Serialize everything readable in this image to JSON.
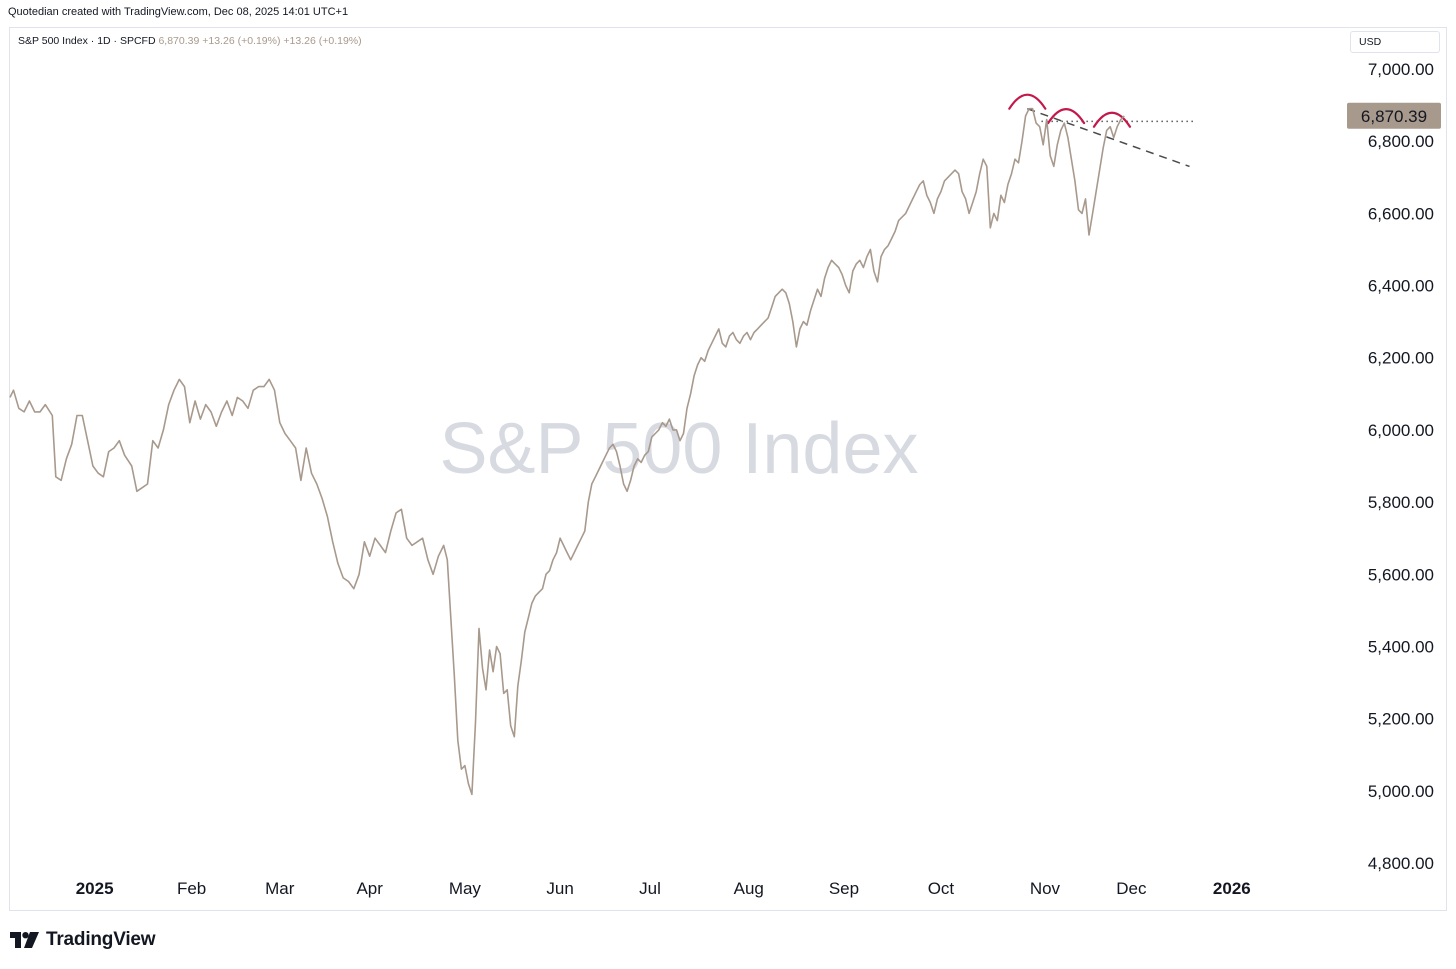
{
  "header": {
    "credit": "Quotedian created with TradingView.com, Dec 08, 2025 14:01 UTC+1"
  },
  "legend": {
    "symbol": "S&P 500 Index · 1D · SPCFD",
    "last": "6,870.39",
    "change": "+13.26 (+0.19%)",
    "change2": "+13.26 (+0.19%)"
  },
  "currency": "USD",
  "watermark": "S&P 500 Index",
  "brand": {
    "name": "TradingView",
    "icon": "tradingview-logo-icon"
  },
  "colors": {
    "line": "#a8998d",
    "accent": "#c2184b",
    "price_tag": "#a8998d",
    "trend": "#4a4a4a"
  },
  "chart_data": {
    "type": "line",
    "series": [
      {
        "values": [
          [
            0,
            6090
          ],
          [
            2,
            6110
          ],
          [
            5,
            6060
          ],
          [
            8,
            6050
          ],
          [
            11,
            6080
          ],
          [
            14,
            6050
          ],
          [
            17,
            6050
          ],
          [
            20,
            6070
          ],
          [
            24,
            6040
          ],
          [
            26,
            5870
          ],
          [
            29,
            5860
          ],
          [
            32,
            5920
          ],
          [
            35,
            5960
          ],
          [
            38,
            6040
          ],
          [
            41,
            6040
          ],
          [
            44,
            5970
          ],
          [
            47,
            5900
          ],
          [
            50,
            5880
          ],
          [
            53,
            5870
          ],
          [
            56,
            5940
          ],
          [
            59,
            5950
          ],
          [
            62,
            5970
          ],
          [
            65,
            5930
          ],
          [
            69,
            5900
          ],
          [
            72,
            5830
          ],
          [
            75,
            5840
          ],
          [
            78,
            5850
          ],
          [
            81,
            5970
          ],
          [
            84,
            5950
          ],
          [
            87,
            6000
          ],
          [
            90,
            6070
          ],
          [
            93,
            6110
          ],
          [
            96,
            6140
          ],
          [
            99,
            6120
          ],
          [
            102,
            6020
          ],
          [
            105,
            6080
          ],
          [
            108,
            6030
          ],
          [
            111,
            6070
          ],
          [
            114,
            6050
          ],
          [
            117,
            6010
          ],
          [
            120,
            6050
          ],
          [
            123,
            6080
          ],
          [
            126,
            6040
          ],
          [
            129,
            6090
          ],
          [
            132,
            6080
          ],
          [
            135,
            6060
          ],
          [
            138,
            6110
          ],
          [
            141,
            6120
          ],
          [
            144,
            6120
          ],
          [
            147,
            6140
          ],
          [
            150,
            6110
          ],
          [
            153,
            6020
          ],
          [
            156,
            5990
          ],
          [
            159,
            5970
          ],
          [
            162,
            5950
          ],
          [
            165,
            5860
          ],
          [
            168,
            5950
          ],
          [
            171,
            5880
          ],
          [
            174,
            5850
          ],
          [
            177,
            5810
          ],
          [
            180,
            5760
          ],
          [
            183,
            5690
          ],
          [
            186,
            5630
          ],
          [
            189,
            5590
          ],
          [
            192,
            5580
          ],
          [
            195,
            5560
          ],
          [
            198,
            5600
          ],
          [
            201,
            5690
          ],
          [
            204,
            5650
          ],
          [
            207,
            5700
          ],
          [
            210,
            5680
          ],
          [
            213,
            5660
          ],
          [
            216,
            5720
          ],
          [
            219,
            5770
          ],
          [
            222,
            5780
          ],
          [
            225,
            5700
          ],
          [
            228,
            5680
          ],
          [
            231,
            5690
          ],
          [
            234,
            5700
          ],
          [
            237,
            5640
          ],
          [
            240,
            5600
          ],
          [
            243,
            5650
          ],
          [
            246,
            5680
          ],
          [
            248,
            5640
          ],
          [
            250,
            5480
          ],
          [
            252,
            5320
          ],
          [
            254,
            5140
          ],
          [
            256,
            5060
          ],
          [
            258,
            5070
          ],
          [
            260,
            5020
          ],
          [
            262,
            4990
          ],
          [
            264,
            5190
          ],
          [
            266,
            5450
          ],
          [
            268,
            5340
          ],
          [
            270,
            5280
          ],
          [
            272,
            5390
          ],
          [
            274,
            5330
          ],
          [
            276,
            5400
          ],
          [
            278,
            5380
          ],
          [
            280,
            5270
          ],
          [
            282,
            5280
          ],
          [
            284,
            5180
          ],
          [
            286,
            5150
          ],
          [
            288,
            5290
          ],
          [
            290,
            5360
          ],
          [
            292,
            5440
          ],
          [
            294,
            5480
          ],
          [
            296,
            5520
          ],
          [
            298,
            5540
          ],
          [
            300,
            5550
          ],
          [
            302,
            5560
          ],
          [
            304,
            5600
          ],
          [
            306,
            5610
          ],
          [
            308,
            5640
          ],
          [
            310,
            5660
          ],
          [
            312,
            5700
          ],
          [
            314,
            5680
          ],
          [
            316,
            5660
          ],
          [
            318,
            5640
          ],
          [
            320,
            5660
          ],
          [
            322,
            5680
          ],
          [
            324,
            5700
          ],
          [
            326,
            5720
          ],
          [
            328,
            5800
          ],
          [
            330,
            5850
          ],
          [
            332,
            5870
          ],
          [
            334,
            5890
          ],
          [
            336,
            5910
          ],
          [
            338,
            5930
          ],
          [
            340,
            5950
          ],
          [
            342,
            5960
          ],
          [
            344,
            5940
          ],
          [
            346,
            5900
          ],
          [
            348,
            5850
          ],
          [
            350,
            5830
          ],
          [
            352,
            5860
          ],
          [
            354,
            5900
          ],
          [
            356,
            5920
          ],
          [
            358,
            5910
          ],
          [
            360,
            5930
          ],
          [
            362,
            5940
          ],
          [
            364,
            5980
          ],
          [
            366,
            5990
          ],
          [
            368,
            6000
          ],
          [
            370,
            6020
          ],
          [
            372,
            6010
          ],
          [
            374,
            6030
          ],
          [
            376,
            6000
          ],
          [
            378,
            6000
          ],
          [
            380,
            5970
          ],
          [
            382,
            5990
          ],
          [
            384,
            6060
          ],
          [
            386,
            6100
          ],
          [
            388,
            6150
          ],
          [
            390,
            6180
          ],
          [
            392,
            6200
          ],
          [
            394,
            6190
          ],
          [
            396,
            6220
          ],
          [
            398,
            6240
          ],
          [
            400,
            6260
          ],
          [
            402,
            6280
          ],
          [
            404,
            6240
          ],
          [
            406,
            6230
          ],
          [
            408,
            6260
          ],
          [
            410,
            6270
          ],
          [
            412,
            6250
          ],
          [
            414,
            6240
          ],
          [
            416,
            6260
          ],
          [
            418,
            6270
          ],
          [
            420,
            6250
          ],
          [
            422,
            6270
          ],
          [
            424,
            6280
          ],
          [
            426,
            6290
          ],
          [
            428,
            6300
          ],
          [
            430,
            6310
          ],
          [
            432,
            6340
          ],
          [
            434,
            6370
          ],
          [
            436,
            6380
          ],
          [
            438,
            6390
          ],
          [
            440,
            6380
          ],
          [
            442,
            6350
          ],
          [
            444,
            6300
          ],
          [
            446,
            6230
          ],
          [
            448,
            6280
          ],
          [
            450,
            6300
          ],
          [
            452,
            6290
          ],
          [
            454,
            6330
          ],
          [
            456,
            6360
          ],
          [
            458,
            6390
          ],
          [
            460,
            6370
          ],
          [
            462,
            6420
          ],
          [
            464,
            6450
          ],
          [
            466,
            6470
          ],
          [
            468,
            6460
          ],
          [
            470,
            6450
          ],
          [
            472,
            6430
          ],
          [
            474,
            6400
          ],
          [
            476,
            6380
          ],
          [
            478,
            6440
          ],
          [
            480,
            6460
          ],
          [
            482,
            6470
          ],
          [
            484,
            6450
          ],
          [
            486,
            6480
          ],
          [
            488,
            6500
          ],
          [
            490,
            6440
          ],
          [
            492,
            6410
          ],
          [
            494,
            6480
          ],
          [
            496,
            6500
          ],
          [
            498,
            6510
          ],
          [
            500,
            6530
          ],
          [
            502,
            6550
          ],
          [
            504,
            6580
          ],
          [
            506,
            6590
          ],
          [
            508,
            6600
          ],
          [
            510,
            6620
          ],
          [
            512,
            6640
          ],
          [
            514,
            6660
          ],
          [
            516,
            6680
          ],
          [
            518,
            6690
          ],
          [
            520,
            6650
          ],
          [
            522,
            6630
          ],
          [
            524,
            6600
          ],
          [
            526,
            6640
          ],
          [
            528,
            6660
          ],
          [
            530,
            6690
          ],
          [
            532,
            6700
          ],
          [
            534,
            6710
          ],
          [
            536,
            6720
          ],
          [
            538,
            6710
          ],
          [
            540,
            6660
          ],
          [
            542,
            6640
          ],
          [
            544,
            6600
          ],
          [
            546,
            6630
          ],
          [
            548,
            6660
          ],
          [
            550,
            6710
          ],
          [
            552,
            6750
          ],
          [
            554,
            6730
          ],
          [
            556,
            6560
          ],
          [
            558,
            6600
          ],
          [
            560,
            6580
          ],
          [
            562,
            6650
          ],
          [
            564,
            6630
          ],
          [
            566,
            6680
          ],
          [
            568,
            6710
          ],
          [
            570,
            6750
          ],
          [
            572,
            6740
          ],
          [
            574,
            6800
          ],
          [
            576,
            6870
          ],
          [
            578,
            6890
          ],
          [
            580,
            6890
          ],
          [
            582,
            6850
          ],
          [
            584,
            6840
          ],
          [
            586,
            6790
          ],
          [
            588,
            6860
          ],
          [
            590,
            6760
          ],
          [
            592,
            6730
          ],
          [
            594,
            6790
          ],
          [
            596,
            6830
          ],
          [
            598,
            6850
          ],
          [
            600,
            6810
          ],
          [
            602,
            6750
          ],
          [
            604,
            6690
          ],
          [
            606,
            6610
          ],
          [
            608,
            6600
          ],
          [
            610,
            6640
          ],
          [
            612,
            6540
          ],
          [
            614,
            6600
          ],
          [
            616,
            6660
          ],
          [
            618,
            6720
          ],
          [
            620,
            6780
          ],
          [
            622,
            6830
          ],
          [
            624,
            6840
          ],
          [
            626,
            6810
          ],
          [
            628,
            6840
          ],
          [
            630,
            6860
          ],
          [
            632,
            6870
          ]
        ]
      }
    ],
    "x_ticks": [
      {
        "label": "2025",
        "pos": 48
      },
      {
        "label": "Feb",
        "pos": 103
      },
      {
        "label": "Mar",
        "pos": 153
      },
      {
        "label": "Apr",
        "pos": 204
      },
      {
        "label": "May",
        "pos": 258
      },
      {
        "label": "Jun",
        "pos": 312
      },
      {
        "label": "Jul",
        "pos": 363
      },
      {
        "label": "Aug",
        "pos": 419
      },
      {
        "label": "Sep",
        "pos": 473
      },
      {
        "label": "Oct",
        "pos": 528
      },
      {
        "label": "Nov",
        "pos": 587
      },
      {
        "label": "Dec",
        "pos": 636
      },
      {
        "label": "2026",
        "pos": 693
      }
    ],
    "y_ticks": [
      {
        "value": 7000,
        "label": "7,000.00"
      },
      {
        "value": 6800,
        "label": "6,800.00"
      },
      {
        "value": 6600,
        "label": "6,600.00"
      },
      {
        "value": 6400,
        "label": "6,400.00"
      },
      {
        "value": 6200,
        "label": "6,200.00"
      },
      {
        "value": 6000,
        "label": "6,000.00"
      },
      {
        "value": 5800,
        "label": "5,800.00"
      },
      {
        "value": 5600,
        "label": "5,600.00"
      },
      {
        "value": 5400,
        "label": "5,400.00"
      },
      {
        "value": 5200,
        "label": "5,200.00"
      },
      {
        "value": 5000,
        "label": "5,000.00"
      },
      {
        "value": 4800,
        "label": "4,800.00"
      }
    ],
    "last_value": 6870.39,
    "last_label": "6,870.39",
    "ylim": [
      4800,
      7000
    ],
    "xlim": [
      0,
      743
    ],
    "annotations": {
      "resistance_level": {
        "value": 6855,
        "x_from": 585,
        "x_to": 672
      },
      "trendline": {
        "from": [
          577,
          6890
        ],
        "to": [
          669,
          6730
        ]
      },
      "peaks": [
        {
          "x": 577,
          "value": 6890
        },
        {
          "x": 599,
          "value": 6850
        },
        {
          "x": 625,
          "value": 6840
        }
      ]
    },
    "grid": false
  }
}
